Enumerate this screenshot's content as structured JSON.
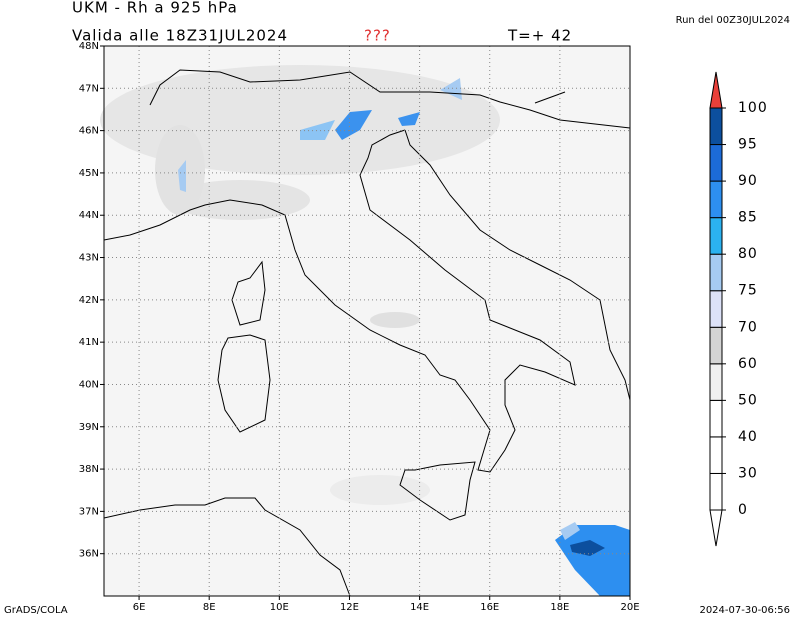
{
  "header": {
    "title": "UKM - Rh a 925 hPa",
    "valid": "Valida alle 18Z31JUL2024",
    "marker": "???",
    "step": "T=+ 42",
    "run": "Run del 00Z30JUL2024"
  },
  "map": {
    "lon_range": [
      5,
      20
    ],
    "lat_range": [
      35,
      48
    ],
    "lon_ticks": [
      {
        "value": 6,
        "label": "6E"
      },
      {
        "value": 8,
        "label": "8E"
      },
      {
        "value": 10,
        "label": "10E"
      },
      {
        "value": 12,
        "label": "12E"
      },
      {
        "value": 14,
        "label": "14E"
      },
      {
        "value": 16,
        "label": "16E"
      },
      {
        "value": 18,
        "label": "18E"
      },
      {
        "value": 20,
        "label": "20E"
      }
    ],
    "lat_ticks": [
      {
        "value": 36,
        "label": "36N"
      },
      {
        "value": 37,
        "label": "37N"
      },
      {
        "value": 38,
        "label": "38N"
      },
      {
        "value": 39,
        "label": "39N"
      },
      {
        "value": 40,
        "label": "40N"
      },
      {
        "value": 41,
        "label": "41N"
      },
      {
        "value": 42,
        "label": "42N"
      },
      {
        "value": 43,
        "label": "43N"
      },
      {
        "value": 44,
        "label": "44N"
      },
      {
        "value": 45,
        "label": "45N"
      },
      {
        "value": 46,
        "label": "46N"
      },
      {
        "value": 47,
        "label": "47N"
      },
      {
        "value": 48,
        "label": "48N"
      }
    ],
    "grid": true
  },
  "colorbar": {
    "levels": [
      0,
      30,
      40,
      50,
      60,
      70,
      75,
      80,
      85,
      90,
      95,
      100
    ],
    "colors": [
      "#ffffff",
      "#ffffff",
      "#ffffff",
      "#f0f0f0",
      "#d4d4d4",
      "#dde2f8",
      "#a6cbf2",
      "#2bb2f0",
      "#2d8ff0",
      "#1c6bd8",
      "#0c4f9e"
    ],
    "under_color": "#ffffff",
    "over_color": "#e8403a"
  },
  "footer": {
    "left": "GrADS/COLA",
    "right": "2024-07-30-06:56"
  }
}
